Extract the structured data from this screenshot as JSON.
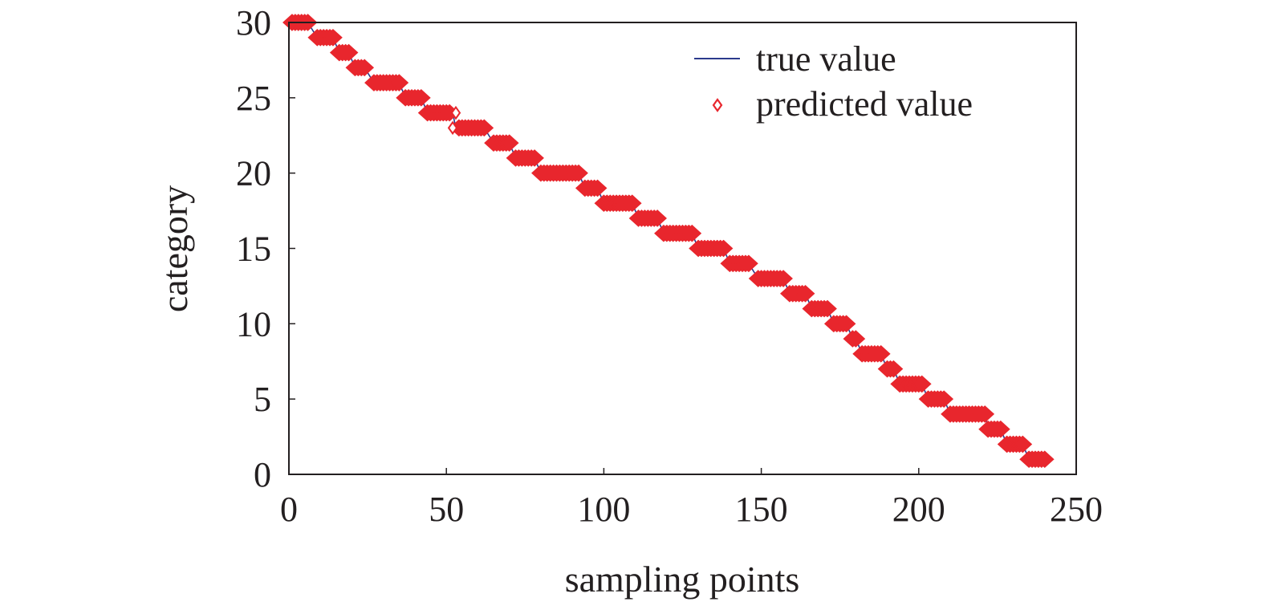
{
  "chart_data": {
    "type": "scatter",
    "xlabel": "sampling points",
    "ylabel": "category",
    "xlim": [
      0,
      250
    ],
    "ylim": [
      0,
      30
    ],
    "xticks": [
      "0",
      "50",
      "100",
      "150",
      "200",
      "250"
    ],
    "yticks": [
      "0",
      "5",
      "10",
      "15",
      "20",
      "25",
      "30"
    ],
    "grid": false,
    "legend_position": "top-right",
    "colors": {
      "true_value": "#2b3a8c",
      "predicted_value": "#e8262d",
      "axis": "#231f20"
    },
    "segments": [
      {
        "category": 30,
        "x_start": 1,
        "x_end": 6
      },
      {
        "category": 29,
        "x_start": 9,
        "x_end": 14
      },
      {
        "category": 28,
        "x_start": 16,
        "x_end": 19
      },
      {
        "category": 27,
        "x_start": 21,
        "x_end": 24
      },
      {
        "category": 26,
        "x_start": 27,
        "x_end": 35
      },
      {
        "category": 25,
        "x_start": 37,
        "x_end": 42
      },
      {
        "category": 24,
        "x_start": 44,
        "x_end": 52
      },
      {
        "category": 23,
        "x_start": 53,
        "x_end": 62
      },
      {
        "category": 22,
        "x_start": 65,
        "x_end": 70
      },
      {
        "category": 21,
        "x_start": 72,
        "x_end": 78
      },
      {
        "category": 20,
        "x_start": 80,
        "x_end": 92
      },
      {
        "category": 19,
        "x_start": 94,
        "x_end": 98
      },
      {
        "category": 18,
        "x_start": 100,
        "x_end": 109
      },
      {
        "category": 17,
        "x_start": 111,
        "x_end": 117
      },
      {
        "category": 16,
        "x_start": 119,
        "x_end": 128
      },
      {
        "category": 15,
        "x_start": 130,
        "x_end": 138
      },
      {
        "category": 14,
        "x_start": 140,
        "x_end": 146
      },
      {
        "category": 13,
        "x_start": 149,
        "x_end": 157
      },
      {
        "category": 12,
        "x_start": 159,
        "x_end": 164
      },
      {
        "category": 11,
        "x_start": 166,
        "x_end": 171
      },
      {
        "category": 10,
        "x_start": 173,
        "x_end": 177
      },
      {
        "category": 9,
        "x_start": 179,
        "x_end": 180
      },
      {
        "category": 8,
        "x_start": 182,
        "x_end": 188
      },
      {
        "category": 7,
        "x_start": 190,
        "x_end": 192
      },
      {
        "category": 6,
        "x_start": 194,
        "x_end": 201
      },
      {
        "category": 5,
        "x_start": 203,
        "x_end": 208
      },
      {
        "category": 4,
        "x_start": 210,
        "x_end": 221
      },
      {
        "category": 3,
        "x_start": 222,
        "x_end": 226
      },
      {
        "category": 2,
        "x_start": 228,
        "x_end": 233
      },
      {
        "category": 1,
        "x_start": 235,
        "x_end": 240
      }
    ],
    "mispredictions": [
      {
        "x": 53,
        "true": 23,
        "predicted": 24
      },
      {
        "x": 52,
        "true": 24,
        "predicted": 23
      }
    ],
    "series": [
      {
        "name": "true value",
        "marker": "line",
        "color": "#2b3a8c"
      },
      {
        "name": "predicted value",
        "marker": "diamond",
        "color": "#e8262d"
      }
    ]
  },
  "legend": {
    "true_value_label": "true value",
    "predicted_value_label": "predicted value"
  }
}
